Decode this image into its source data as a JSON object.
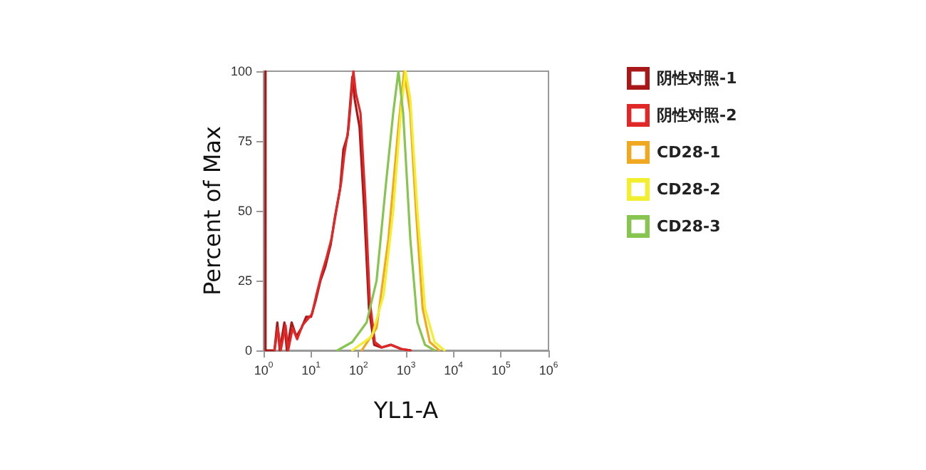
{
  "chart_data": {
    "type": "line",
    "xlabel": "YL1-A",
    "ylabel": "Percent of Max",
    "log": "x",
    "xlim": [
      1,
      1000000
    ],
    "ylim": [
      0,
      100
    ],
    "xticks": [
      {
        "value": 1,
        "label": "10$^{0}$"
      },
      {
        "value": 10,
        "label": "10$^{1}$"
      },
      {
        "value": 100,
        "label": "10$^{2}$"
      },
      {
        "value": 1000,
        "label": "10$^{3}$"
      },
      {
        "value": 10000,
        "label": "10$^{4}$"
      },
      {
        "value": 100000,
        "label": "10$^{5}$"
      },
      {
        "value": 1000000,
        "label": "10$^{6}$"
      }
    ],
    "yticks": [
      0,
      25,
      50,
      75,
      100
    ],
    "grid": false,
    "legend": "right",
    "marker": "none",
    "line_style": "solid",
    "series": [
      {
        "name": "阴性对照-1",
        "color": "#a81818",
        "x": [
          1.1,
          1.1,
          1.7,
          1.95,
          2.2,
          2.75,
          3.1,
          3.9,
          4.9,
          6.3,
          7.9,
          10,
          12.6,
          15.8,
          20,
          26,
          32,
          41,
          48,
          59,
          74,
          83,
          105,
          132,
          166,
          214,
          302,
          479,
          776,
          1230
        ],
        "values": [
          100,
          0,
          0,
          10,
          0,
          10,
          0,
          10,
          5,
          8,
          12,
          12,
          18,
          25,
          30,
          38,
          48,
          58,
          72,
          77,
          98,
          90,
          80,
          50,
          15,
          2,
          1,
          2,
          0.5,
          0
        ]
      },
      {
        "name": "阴性对照-2",
        "color": "#e02828",
        "x": [
          1.7,
          2.0,
          2.3,
          2.9,
          3.3,
          4.1,
          5.1,
          6.6,
          8.3,
          10.5,
          13,
          16.5,
          21,
          27,
          34,
          43,
          50,
          62,
          78,
          88,
          110,
          138,
          172,
          220,
          310,
          490,
          800,
          1260
        ],
        "values": [
          0,
          8,
          0,
          9,
          0,
          8,
          4,
          9,
          11,
          13,
          20,
          27,
          33,
          40,
          50,
          60,
          70,
          80,
          100,
          92,
          85,
          55,
          18,
          3,
          1,
          2,
          0.5,
          0
        ]
      },
      {
        "name": "CD28-1",
        "color": "#f0a820",
        "x": [
          117,
          240,
          427,
          692,
          912,
          1230,
          1622,
          2239,
          3162,
          5012
        ],
        "values": [
          0,
          8,
          40,
          80,
          100,
          85,
          50,
          15,
          3,
          0
        ]
      },
      {
        "name": "CD28-2",
        "color": "#f2ee30",
        "x": [
          74,
          191,
          339,
          537,
          776,
          977,
          1230,
          1738,
          2512,
          3981,
          6457
        ],
        "values": [
          0,
          5,
          20,
          50,
          85,
          100,
          90,
          50,
          15,
          3,
          0
        ]
      },
      {
        "name": "CD28-3",
        "color": "#88c450",
        "x": [
          36,
          74,
          148,
          240,
          380,
          537,
          692,
          871,
          1230,
          1738,
          2512,
          3981
        ],
        "values": [
          0,
          3,
          10,
          25,
          60,
          85,
          100,
          85,
          40,
          10,
          2,
          0
        ]
      }
    ]
  }
}
